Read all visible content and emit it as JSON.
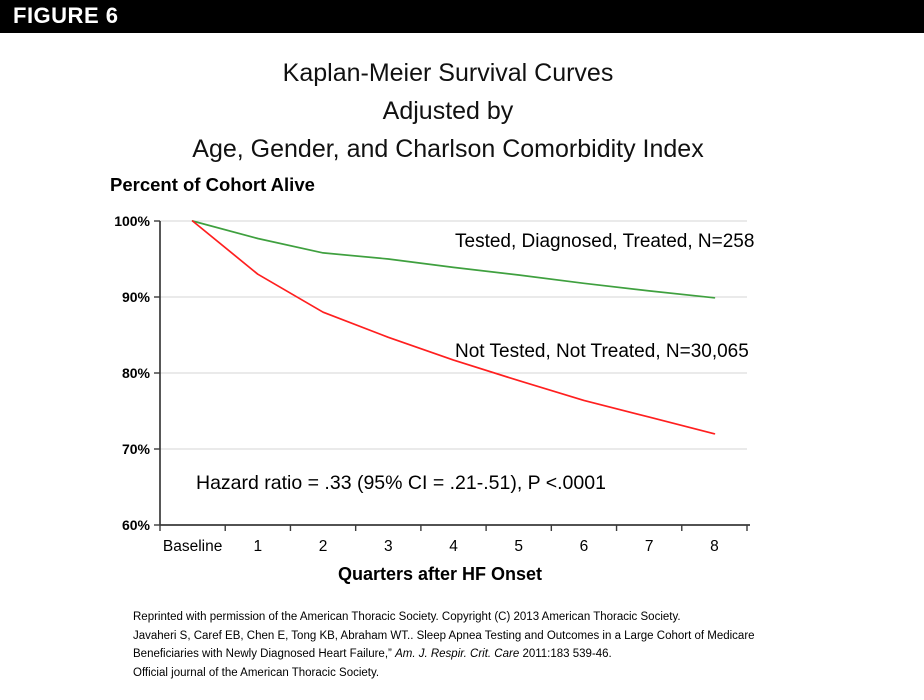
{
  "figure_tag": "FIGURE 6",
  "title_lines": [
    "Kaplan-Meier Survival Curves",
    "Adjusted by",
    "Age, Gender, and Charlson Comorbidity Index"
  ],
  "annotation": "Hazard ratio = .33 (95% CI = .21-.51), P <.0001",
  "footer": {
    "line1": "Reprinted with permission of the American Thoracic Society. Copyright (C) 2013 American Thoracic Society.",
    "line2": "Javaheri S, Caref EB, Chen E, Tong KB, Abraham WT.. Sleep Apnea Testing and Outcomes in a Large Cohort of Medicare",
    "line3_pre": "Beneficiaries with Newly Diagnosed Heart Failure,” ",
    "line3_italic": "Am. J. Respir. Crit. Care",
    "line3_post": " 2011:183 539-46.",
    "line4": "Official journal of the American Thoracic Society."
  },
  "chart_data": {
    "type": "line",
    "title": "Kaplan-Meier Survival Curves Adjusted by Age, Gender, and Charlson Comorbidity Index",
    "categories": [
      "Baseline",
      "1",
      "2",
      "3",
      "4",
      "5",
      "6",
      "7",
      "8"
    ],
    "series": [
      {
        "name": "Tested, Diagnosed, Treated, N=258",
        "color": "#3fa03f",
        "values": [
          100,
          97.7,
          95.8,
          95.0,
          93.9,
          92.9,
          91.8,
          90.8,
          89.9
        ]
      },
      {
        "name": "Not Tested, Not Treated, N=30,065",
        "color": "#ff1f1f",
        "values": [
          100,
          93.0,
          88.0,
          84.7,
          81.7,
          79.0,
          76.4,
          74.2,
          72.0
        ]
      }
    ],
    "xlabel": "Quarters after HF Onset",
    "ylabel": "Percent of Cohort Alive",
    "ylim": [
      60,
      100
    ],
    "y_ticks": [
      {
        "label": "100%",
        "value": 100
      },
      {
        "label": "90%",
        "value": 90
      },
      {
        "label": "80%",
        "value": 80
      },
      {
        "label": "70%",
        "value": 70
      },
      {
        "label": "60%",
        "value": 60
      }
    ],
    "grid": true,
    "grid_color": "#d6d6d6",
    "axis_color": "#3a3a3a",
    "legend_position": "inline-annotations",
    "annotation": "Hazard ratio = .33 (95% CI = .21-.51), P <.0001"
  }
}
